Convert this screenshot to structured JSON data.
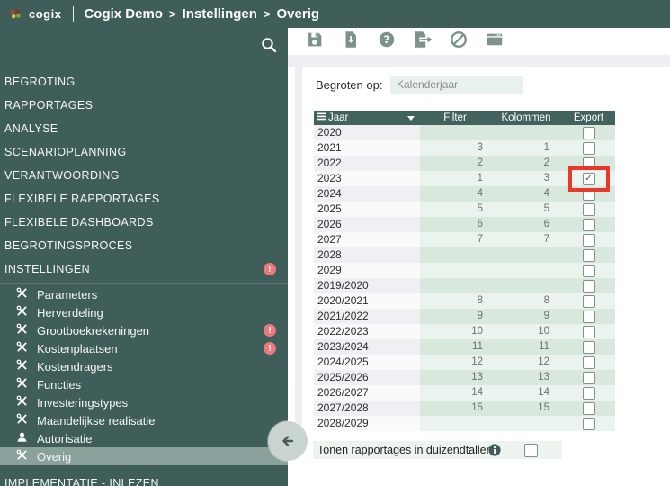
{
  "colors": {
    "brand_dark_green": "#3F5E59",
    "table_header_green": "#42625D",
    "stripe_green_dark": "#D9E8DC",
    "stripe_green_light": "#EBF3EE",
    "selected_item_bg": "#8AA29B",
    "badge_pink": "#E8797D",
    "highlight_red": "#E8382D",
    "input_bg": "#E8F1EB",
    "toolbar_icon_green": "#7C928D"
  },
  "topbar": {
    "logo_text": "cogix",
    "breadcrumb": [
      {
        "label": "Cogix Demo"
      },
      {
        "label": "Instellingen"
      },
      {
        "label": "Overig"
      }
    ],
    "breadcrumb_separator": ">"
  },
  "sidebar": {
    "sections": [
      {
        "label": "BEGROTING"
      },
      {
        "label": "RAPPORTAGES"
      },
      {
        "label": "ANALYSE"
      },
      {
        "label": "SCENARIOPLANNING"
      },
      {
        "label": "VERANTWOORDING"
      },
      {
        "label": "FLEXIBELE RAPPORTAGES"
      },
      {
        "label": "FLEXIBELE DASHBOARDS"
      },
      {
        "label": "BEGROTINGSPROCES"
      },
      {
        "label": "INSTELLINGEN",
        "badge": "!"
      }
    ],
    "submenu": [
      {
        "label": "Parameters",
        "icon": "tools-icon"
      },
      {
        "label": "Herverdeling",
        "icon": "tools-icon"
      },
      {
        "label": "Grootboekrekeningen",
        "icon": "tools-icon",
        "badge": "!"
      },
      {
        "label": "Kostenplaatsen",
        "icon": "tools-icon",
        "badge": "!"
      },
      {
        "label": "Kostendragers",
        "icon": "tools-icon"
      },
      {
        "label": "Functies",
        "icon": "tools-icon"
      },
      {
        "label": "Investeringstypes",
        "icon": "tools-icon"
      },
      {
        "label": "Maandelijkse realisatie",
        "icon": "tools-icon"
      },
      {
        "label": "Autorisatie",
        "icon": "user-icon"
      },
      {
        "label": "Overig",
        "icon": "tools-icon",
        "selected": true
      }
    ],
    "bottom_section": {
      "label": "IMPLEMENTATIE - INLEZEN"
    }
  },
  "toolbar": {
    "icons": [
      {
        "name": "save-icon"
      },
      {
        "name": "download-icon"
      },
      {
        "name": "help-icon"
      },
      {
        "name": "export-icon"
      },
      {
        "name": "cancel-icon"
      },
      {
        "name": "window-icon"
      }
    ]
  },
  "form": {
    "label": "Begroten op:",
    "value": "Kalenderjaar"
  },
  "table": {
    "columns": [
      "Jaar",
      "Filter",
      "Kolommen",
      "Export"
    ],
    "rows": [
      {
        "jaar": "2020",
        "filter": "",
        "kolommen": "",
        "export_checked": false
      },
      {
        "jaar": "2021",
        "filter": "3",
        "kolommen": "1",
        "export_checked": false
      },
      {
        "jaar": "2022",
        "filter": "2",
        "kolommen": "2",
        "export_checked": false
      },
      {
        "jaar": "2023",
        "filter": "1",
        "kolommen": "3",
        "export_checked": true,
        "highlighted": true
      },
      {
        "jaar": "2024",
        "filter": "4",
        "kolommen": "4",
        "export_checked": false
      },
      {
        "jaar": "2025",
        "filter": "5",
        "kolommen": "5",
        "export_checked": false
      },
      {
        "jaar": "2026",
        "filter": "6",
        "kolommen": "6",
        "export_checked": false
      },
      {
        "jaar": "2027",
        "filter": "7",
        "kolommen": "7",
        "export_checked": false
      },
      {
        "jaar": "2028",
        "filter": "",
        "kolommen": "",
        "export_checked": false
      },
      {
        "jaar": "2029",
        "filter": "",
        "kolommen": "",
        "export_checked": false
      },
      {
        "jaar": "2019/2020",
        "filter": "",
        "kolommen": "",
        "export_checked": false
      },
      {
        "jaar": "2020/2021",
        "filter": "8",
        "kolommen": "8",
        "export_checked": false
      },
      {
        "jaar": "2021/2022",
        "filter": "9",
        "kolommen": "9",
        "export_checked": false
      },
      {
        "jaar": "2022/2023",
        "filter": "10",
        "kolommen": "10",
        "export_checked": false
      },
      {
        "jaar": "2023/2024",
        "filter": "11",
        "kolommen": "11",
        "export_checked": false
      },
      {
        "jaar": "2024/2025",
        "filter": "12",
        "kolommen": "12",
        "export_checked": false
      },
      {
        "jaar": "2025/2026",
        "filter": "13",
        "kolommen": "13",
        "export_checked": false
      },
      {
        "jaar": "2026/2027",
        "filter": "14",
        "kolommen": "14",
        "export_checked": false
      },
      {
        "jaar": "2027/2028",
        "filter": "15",
        "kolommen": "15",
        "export_checked": false
      },
      {
        "jaar": "2028/2029",
        "filter": "",
        "kolommen": "",
        "export_checked": false
      }
    ]
  },
  "footer": {
    "label": "Tonen rapportages in duizendtallen",
    "checked": false
  },
  "check_glyph": "✓"
}
